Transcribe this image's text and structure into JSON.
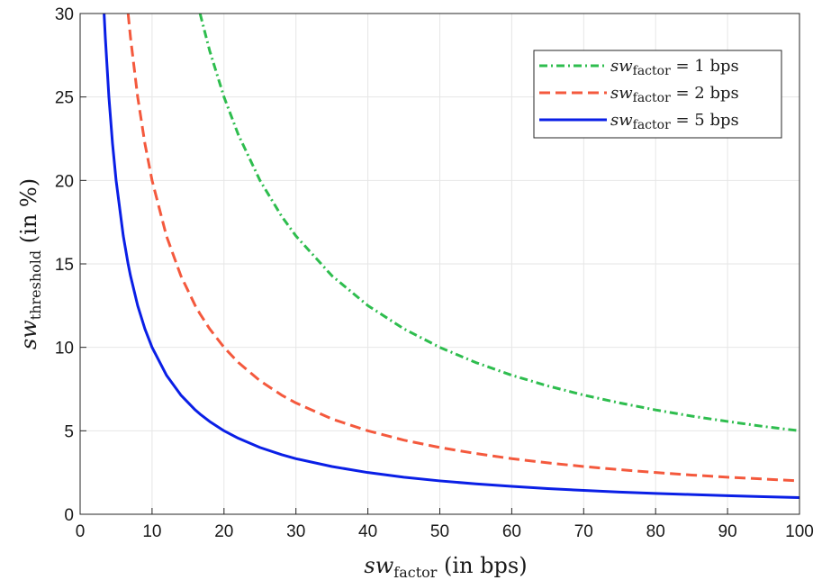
{
  "chart_data": {
    "type": "line",
    "xlabel_var": "sw",
    "xlabel_sub": "factor",
    "xlabel_unit": "(in bps)",
    "ylabel_var": "sw",
    "ylabel_sub": "threshold",
    "ylabel_unit": "(in %)",
    "xlim": [
      0,
      100
    ],
    "ylim": [
      0,
      30
    ],
    "xticks": [
      0,
      10,
      20,
      30,
      40,
      50,
      60,
      70,
      80,
      90,
      100
    ],
    "yticks": [
      0,
      5,
      10,
      15,
      20,
      25,
      30
    ],
    "grid": true,
    "legend_position": "top-right",
    "x": [
      3.33,
      3.5,
      4,
      4.5,
      5,
      6,
      6.67,
      7,
      8,
      9,
      10,
      12,
      14,
      16,
      16.67,
      18,
      20,
      22,
      25,
      28,
      30,
      35,
      40,
      45,
      50,
      55,
      60,
      65,
      70,
      75,
      80,
      85,
      90,
      95,
      100
    ],
    "series": [
      {
        "name_var": "sw",
        "name_sub": "factor",
        "name_rest": " = 1 bps",
        "color": "#2ebd4e",
        "dash": "dashdot",
        "values": [
          null,
          null,
          null,
          null,
          null,
          null,
          null,
          null,
          null,
          null,
          null,
          null,
          null,
          null,
          30,
          27.78,
          25,
          22.73,
          20,
          17.86,
          16.67,
          14.29,
          12.5,
          11.11,
          10,
          9.09,
          8.33,
          7.69,
          7.14,
          6.67,
          6.25,
          5.88,
          5.56,
          5.26,
          5
        ]
      },
      {
        "name_var": "sw",
        "name_sub": "factor",
        "name_rest": " = 2 bps",
        "color": "#f4593d",
        "dash": "dashed",
        "values": [
          null,
          null,
          null,
          null,
          null,
          null,
          30,
          28.57,
          25,
          22.22,
          20,
          16.67,
          14.29,
          12.5,
          12,
          11.11,
          10,
          9.09,
          8,
          7.14,
          6.67,
          5.71,
          5,
          4.44,
          4,
          3.64,
          3.33,
          3.08,
          2.86,
          2.67,
          2.5,
          2.35,
          2.22,
          2.11,
          2
        ]
      },
      {
        "name_var": "sw",
        "name_sub": "factor",
        "name_rest": " = 5 bps",
        "color": "#0a1fe6",
        "dash": "solid",
        "values": [
          30,
          28.57,
          25,
          22.22,
          20,
          16.67,
          15,
          14.29,
          12.5,
          11.11,
          10,
          8.33,
          7.14,
          6.25,
          6,
          5.56,
          5,
          4.55,
          4,
          3.57,
          3.33,
          2.86,
          2.5,
          2.22,
          2,
          1.82,
          1.67,
          1.54,
          1.43,
          1.33,
          1.25,
          1.18,
          1.11,
          1.05,
          1
        ]
      }
    ]
  }
}
